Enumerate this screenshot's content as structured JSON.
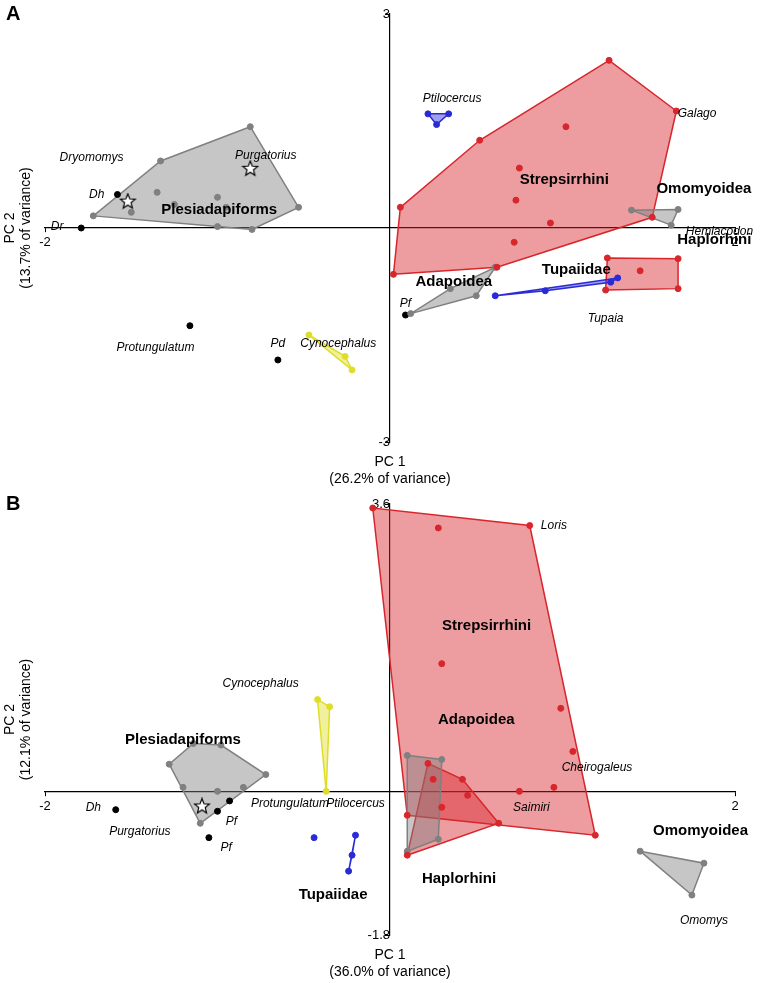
{
  "chart_data": [
    {
      "type": "scatter",
      "panel": "A",
      "x_label": [
        "PC 1",
        "(26.2% of variance)"
      ],
      "y_label": [
        "PC 2",
        "(13.7% of variance)"
      ],
      "xlim": [
        -2,
        2
      ],
      "xticks": [
        -2,
        2
      ],
      "ylim": [
        -3,
        3
      ],
      "yticks": [
        -3,
        3
      ],
      "grid": false,
      "series": [
        {
          "name": "Plesiadapiforms",
          "name_at": [
            -0.99,
            0.25
          ],
          "type": "hull",
          "marker": "circle",
          "color": "#808080",
          "values": [
            [
              -1.33,
              0.94
            ],
            [
              -0.81,
              1.42
            ],
            [
              -0.53,
              0.29
            ],
            [
              -1.72,
              0.17
            ],
            [
              -1.5,
              0.22
            ],
            [
              -1.25,
              0.33
            ],
            [
              -1.0,
              0.43
            ],
            [
              -0.95,
              0.29
            ],
            [
              -1.0,
              0.02
            ],
            [
              -0.8,
              -0.02
            ],
            [
              -1.35,
              0.5
            ]
          ]
        },
        {
          "name": "Strepsirrhini",
          "name_at": [
            1.01,
            0.68
          ],
          "type": "hull",
          "marker": "circle",
          "color": "#d7262c",
          "values": [
            [
              0.02,
              -0.65
            ],
            [
              0.06,
              0.29
            ],
            [
              0.52,
              1.23
            ],
            [
              0.75,
              0.84
            ],
            [
              0.73,
              0.39
            ],
            [
              1.02,
              1.42
            ],
            [
              1.27,
              2.35
            ],
            [
              1.66,
              1.64
            ],
            [
              0.62,
              -0.55
            ],
            [
              0.93,
              0.07
            ],
            [
              1.52,
              0.15
            ],
            [
              0.72,
              -0.2
            ]
          ]
        },
        {
          "name": "Omomyoidea",
          "name_at": [
            1.82,
            0.55
          ],
          "type": "hull",
          "marker": "circle",
          "color": "#808080",
          "values": [
            [
              1.4,
              0.25
            ],
            [
              1.67,
              0.26
            ],
            [
              1.63,
              0.04
            ]
          ]
        },
        {
          "name": "Haplorhini",
          "name_at": [
            1.88,
            -0.17
          ],
          "type": "hull",
          "marker": "circle",
          "color": "#d7262c",
          "values": [
            [
              1.26,
              -0.42
            ],
            [
              1.67,
              -0.43
            ],
            [
              1.67,
              -0.85
            ],
            [
              1.25,
              -0.87
            ],
            [
              1.45,
              -0.6
            ]
          ]
        },
        {
          "name": "Tupaiidae",
          "name_at": [
            1.08,
            -0.58
          ],
          "type": "hull",
          "marker": "circle",
          "color": "#2b2bd6",
          "values": [
            [
              0.61,
              -0.95
            ],
            [
              0.9,
              -0.88
            ],
            [
              1.32,
              -0.7
            ],
            [
              1.28,
              -0.76
            ]
          ]
        },
        {
          "type": "hull",
          "marker": "circle",
          "color": "#2b2bd6",
          "values": [
            [
              0.22,
              1.6
            ],
            [
              0.34,
              1.6
            ],
            [
              0.27,
              1.45
            ]
          ]
        },
        {
          "name": "Adapoidea",
          "name_at": [
            0.37,
            -0.75
          ],
          "type": "hull",
          "marker": "circle",
          "color": "#808080",
          "values": [
            [
              0.12,
              -1.2
            ],
            [
              0.61,
              -0.55
            ],
            [
              0.5,
              -0.95
            ],
            [
              0.35,
              -0.85
            ]
          ]
        },
        {
          "type": "hull",
          "marker": "circle",
          "color": "#dede2a",
          "values": [
            [
              -0.47,
              -1.5
            ],
            [
              -0.22,
              -1.99
            ],
            [
              -0.26,
              -1.8
            ]
          ]
        },
        {
          "type": "scatter",
          "marker": "circle",
          "color": "#000000",
          "values": [
            [
              -1.58,
              0.47
            ],
            [
              -1.79,
              0.0
            ],
            [
              -1.16,
              -1.37
            ],
            [
              -0.65,
              -1.85
            ],
            [
              0.09,
              -1.22
            ]
          ]
        },
        {
          "type": "scatter",
          "marker": "star",
          "color": "#ffffff",
          "values": [
            [
              -0.81,
              0.83
            ],
            [
              -1.52,
              0.37
            ]
          ]
        }
      ],
      "taxon_labels": [
        {
          "text": "Dryomomys",
          "x": -1.73,
          "y": 0.99
        },
        {
          "text": "Purgatorius",
          "x": -0.72,
          "y": 1.02
        },
        {
          "text": "Dh",
          "x": -1.7,
          "y": 0.47
        },
        {
          "text": "Dr",
          "x": -1.93,
          "y": 0.02
        },
        {
          "text": "Protungulatum",
          "x": -1.36,
          "y": -1.68
        },
        {
          "text": "Pd",
          "x": -0.65,
          "y": -1.62
        },
        {
          "text": "Pf",
          "x": 0.09,
          "y": -1.06
        },
        {
          "text": "Cynocephalus",
          "x": -0.3,
          "y": -1.62
        },
        {
          "text": "Ptilocercus",
          "x": 0.36,
          "y": 1.82
        },
        {
          "text": "Galago",
          "x": 1.78,
          "y": 1.6
        },
        {
          "text": "Hemiacodon",
          "x": 1.91,
          "y": -0.05
        },
        {
          "text": "Tupaia",
          "x": 1.25,
          "y": -1.27
        }
      ]
    },
    {
      "type": "scatter",
      "panel": "B",
      "x_label": [
        "PC 1",
        "(36.0% of variance)"
      ],
      "y_label": [
        "PC 2",
        "(12.1% of variance)"
      ],
      "xlim": [
        -2,
        2
      ],
      "xticks": [
        -2,
        2
      ],
      "ylim": [
        -1.8,
        3.6
      ],
      "yticks": [
        -1.8,
        3.6
      ],
      "grid": false,
      "series": [
        {
          "name": "Plesiadapiforms",
          "name_at": [
            -1.2,
            0.65
          ],
          "type": "hull",
          "marker": "circle",
          "color": "#808080",
          "values": [
            [
              -1.28,
              0.34
            ],
            [
              -1.14,
              0.6
            ],
            [
              -0.98,
              0.58
            ],
            [
              -0.72,
              0.21
            ],
            [
              -0.85,
              0.05
            ],
            [
              -1.0,
              0.0
            ],
            [
              -1.1,
              -0.4
            ],
            [
              -1.2,
              0.05
            ]
          ]
        },
        {
          "name": "Strepsirrhini",
          "name_at": [
            0.56,
            2.07
          ],
          "type": "hull",
          "marker": "circle",
          "color": "#d7262c",
          "values": [
            [
              -0.1,
              3.55
            ],
            [
              0.28,
              3.3
            ],
            [
              0.81,
              3.33
            ],
            [
              0.3,
              1.6
            ],
            [
              0.99,
              1.04
            ],
            [
              1.06,
              0.5
            ],
            [
              0.95,
              0.05
            ],
            [
              1.19,
              -0.55
            ],
            [
              0.75,
              0.0
            ],
            [
              0.45,
              -0.05
            ],
            [
              0.25,
              0.15
            ],
            [
              0.1,
              -0.3
            ]
          ]
        },
        {
          "name": "Haplorhini",
          "name_at": [
            0.4,
            -1.1
          ],
          "type": "hull",
          "marker": "circle",
          "color": "#d7262c",
          "values": [
            [
              0.1,
              -0.8
            ],
            [
              0.22,
              0.35
            ],
            [
              0.63,
              -0.4
            ],
            [
              0.42,
              0.15
            ],
            [
              0.3,
              -0.2
            ]
          ]
        },
        {
          "name": "Adapoidea",
          "name_at": [
            0.5,
            0.9
          ],
          "type": "hull",
          "marker": "circle",
          "color": "#808080",
          "values": [
            [
              0.1,
              0.45
            ],
            [
              0.3,
              0.4
            ],
            [
              0.28,
              -0.6
            ],
            [
              0.1,
              -0.75
            ]
          ]
        },
        {
          "name": "Omomyoidea",
          "name_at": [
            1.8,
            -0.5
          ],
          "type": "hull",
          "marker": "circle",
          "color": "#808080",
          "values": [
            [
              1.45,
              -0.75
            ],
            [
              1.82,
              -0.9
            ],
            [
              1.75,
              -1.3
            ]
          ]
        },
        {
          "name": "Tupaiidae",
          "name_at": [
            -0.33,
            -1.3
          ],
          "type": "hull",
          "marker": "circle",
          "color": "#2b2bd6",
          "values": [
            [
              -0.2,
              -0.55
            ],
            [
              -0.24,
              -1.0
            ],
            [
              -0.22,
              -0.8
            ]
          ]
        },
        {
          "type": "scatter",
          "marker": "circle",
          "color": "#2b2bd6",
          "values": [
            [
              -0.44,
              -0.58
            ]
          ]
        },
        {
          "type": "hull",
          "marker": "circle",
          "color": "#dede2a",
          "values": [
            [
              -0.42,
              1.15
            ],
            [
              -0.35,
              1.06
            ],
            [
              -0.37,
              0.0
            ]
          ]
        },
        {
          "type": "scatter",
          "marker": "circle",
          "color": "#000000",
          "values": [
            [
              -1.59,
              -0.23
            ],
            [
              -1.0,
              -0.25
            ],
            [
              -1.05,
              -0.58
            ],
            [
              -0.93,
              -0.12
            ]
          ]
        },
        {
          "type": "scatter",
          "marker": "star",
          "color": "#ffffff",
          "values": [
            [
              -1.09,
              -0.19
            ]
          ]
        }
      ],
      "taxon_labels": [
        {
          "text": "Dh",
          "x": -1.72,
          "y": -0.2
        },
        {
          "text": "Purgatorius",
          "x": -1.45,
          "y": -0.5
        },
        {
          "text": "Pf",
          "x": -0.92,
          "y": -0.38
        },
        {
          "text": "Pf",
          "x": -0.95,
          "y": -0.7
        },
        {
          "text": "Protungulatum",
          "x": -0.58,
          "y": -0.15
        },
        {
          "text": "Cynocephalus",
          "x": -0.75,
          "y": 1.35
        },
        {
          "text": "Ptilocercus",
          "x": -0.2,
          "y": -0.15
        },
        {
          "text": "Loris",
          "x": 0.95,
          "y": 3.33
        },
        {
          "text": "Cheirogaleus",
          "x": 1.2,
          "y": 0.3
        },
        {
          "text": "Saimiri",
          "x": 0.82,
          "y": -0.2
        },
        {
          "text": "Omomys",
          "x": 1.82,
          "y": -1.62
        }
      ]
    }
  ]
}
